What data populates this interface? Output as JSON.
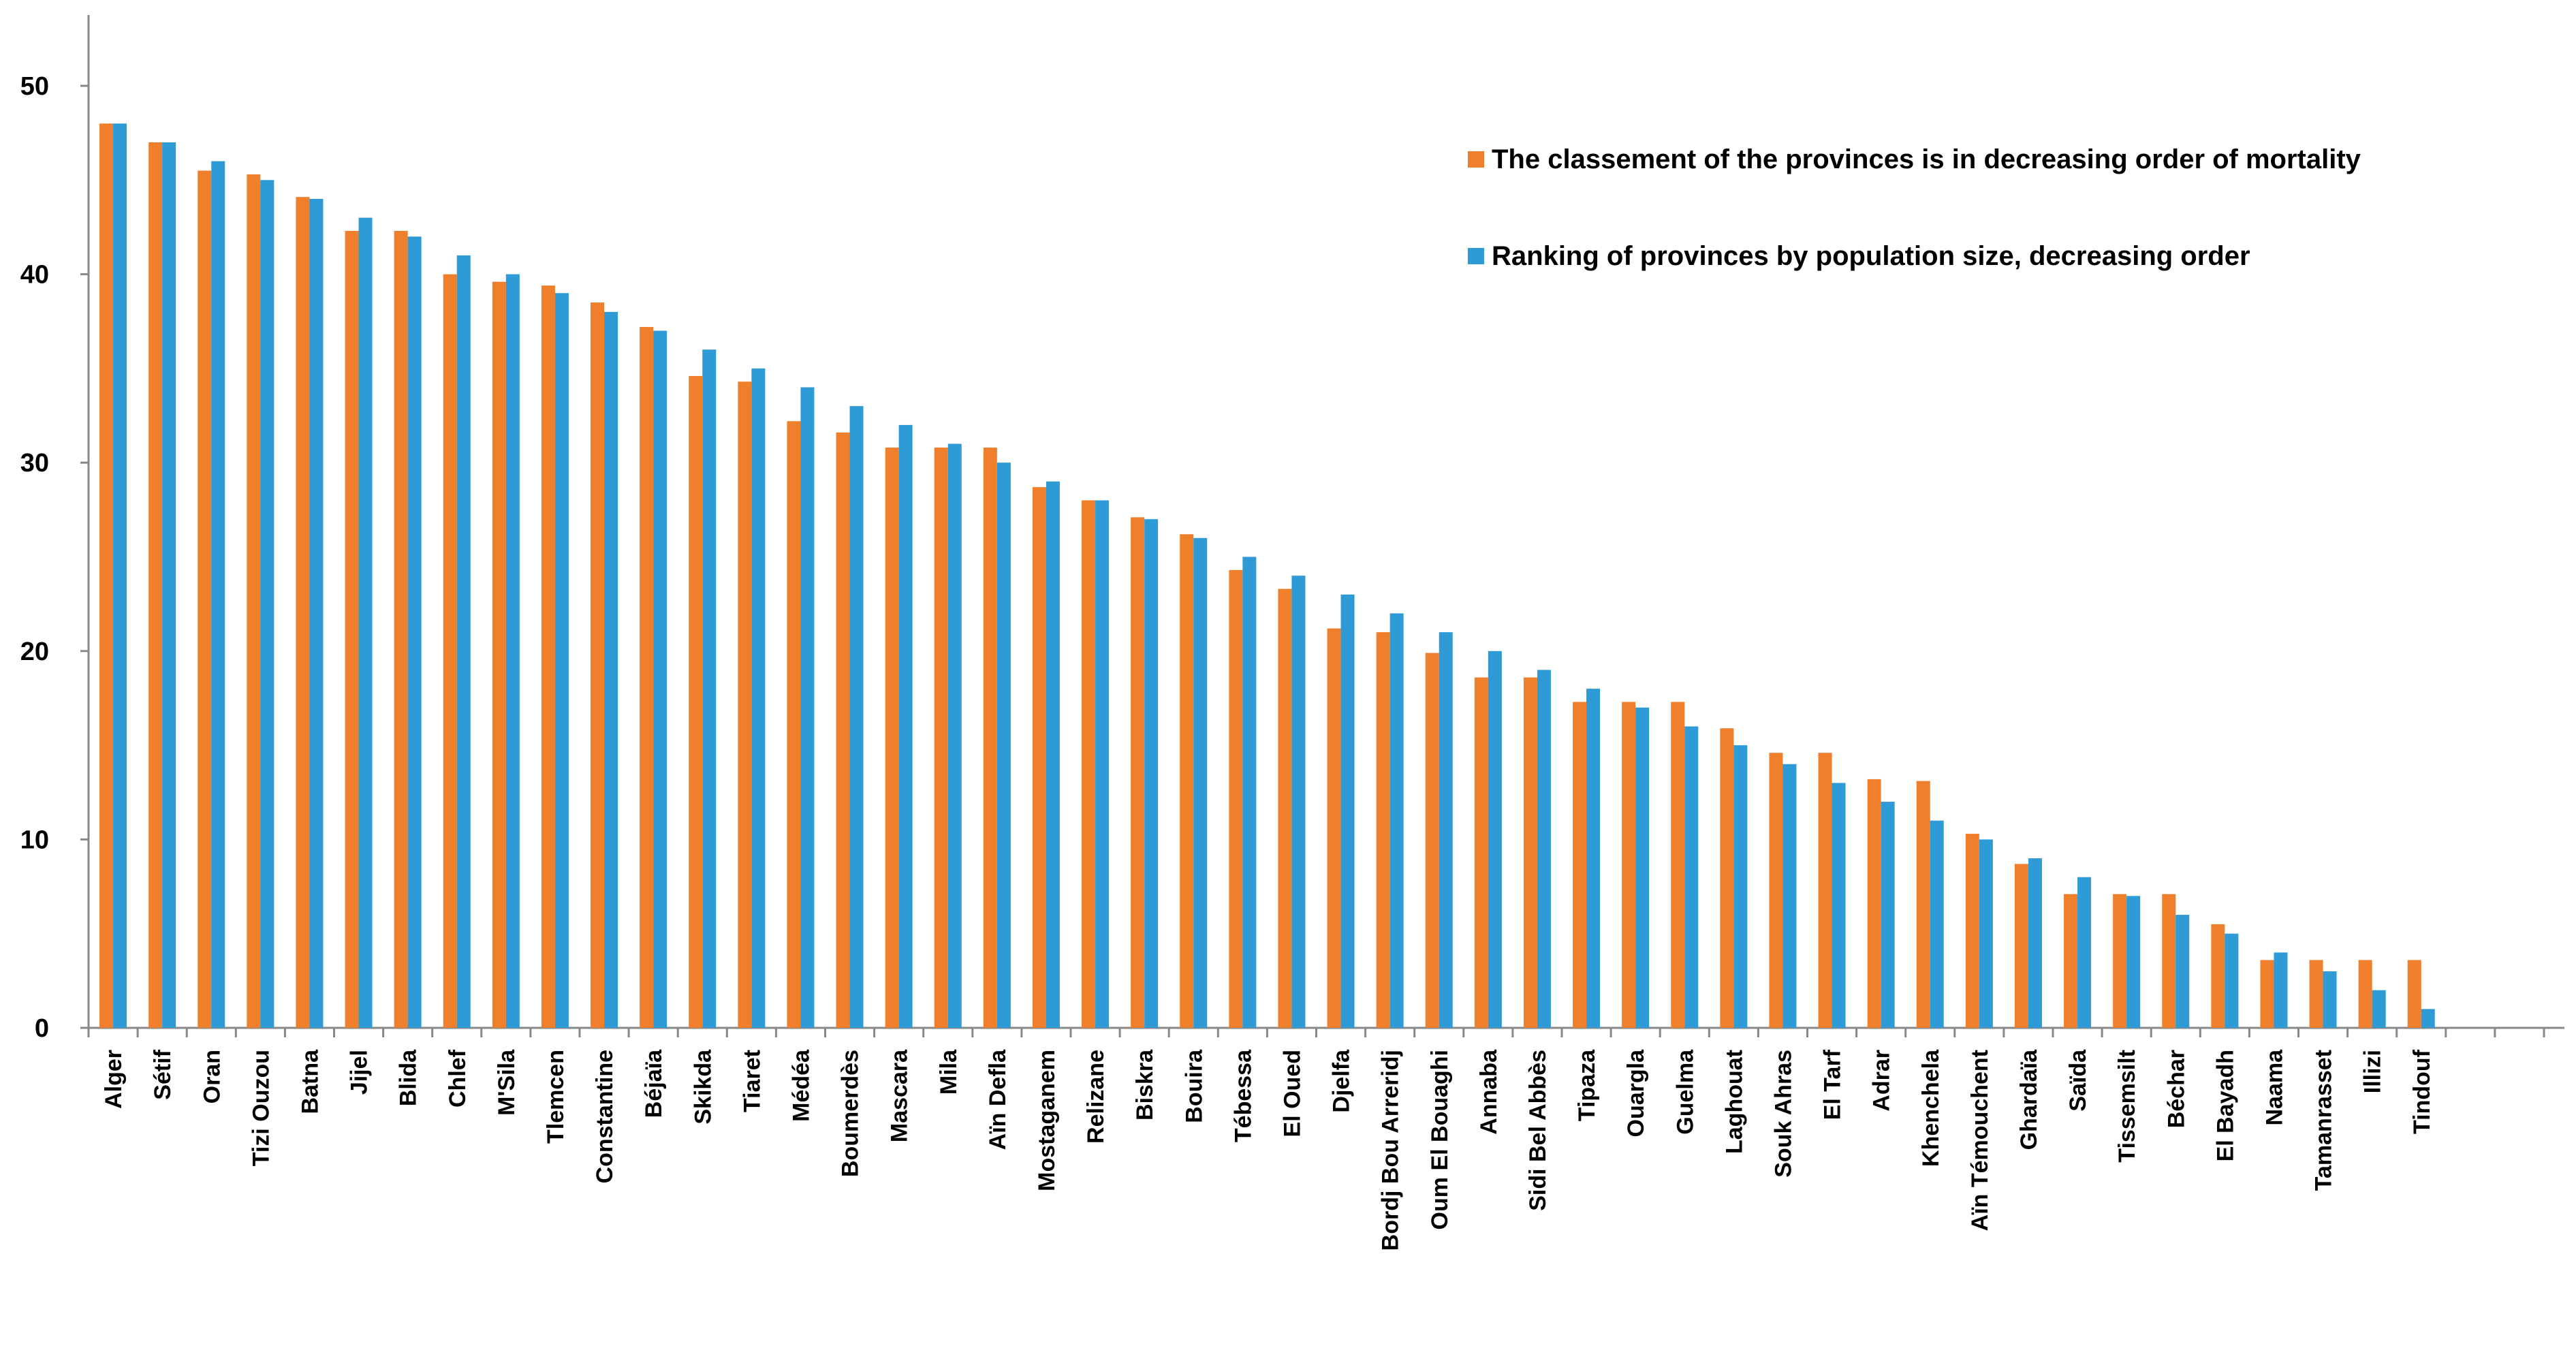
{
  "chart_data": {
    "type": "bar",
    "title": "",
    "xlabel": "",
    "ylabel": "",
    "ylim": [
      0,
      50
    ],
    "yticks": [
      "0",
      "10",
      "20",
      "30",
      "40",
      "50"
    ],
    "grid": false,
    "legend_position": "top-right",
    "categories": [
      "Alger",
      "Sétif",
      "Oran",
      "Tizi Ouzou",
      "Batna",
      "Jijel",
      "Blida",
      "Chlef",
      "M'Sila",
      "Tlemcen",
      "Constantine",
      "Béjaïa",
      "Skikda",
      "Tiaret",
      "Médéa",
      "Boumerdès",
      "Mascara",
      "Mila",
      "Aïn Defla",
      "Mostaganem",
      "Relizane",
      "Biskra",
      "Bouira",
      "Tébessa",
      "El Oued",
      "Djelfa",
      "Bordj Bou Arreridj",
      "Oum El Bouaghi",
      "Annaba",
      "Sidi Bel Abbès",
      "Tipaza",
      "Ouargla",
      "Guelma",
      "Laghouat",
      "Souk Ahras",
      "El Tarf",
      "Adrar",
      "Khenchela",
      "Aïn Témouchent",
      "Ghardaïa",
      "Saïda",
      "Tissemsilt",
      "Béchar",
      "El Bayadh",
      "Naama",
      "Tamanrasset",
      "Illizi",
      "Tindouf"
    ],
    "series": [
      {
        "name": "The classement  of the provinces is in decreasing order of mortality",
        "color": "#F07F2C",
        "values": [
          48,
          47,
          45.5,
          45.3,
          44.1,
          42.3,
          42.3,
          40,
          39.6,
          39.4,
          38.5,
          37.2,
          34.6,
          34.3,
          32.2,
          31.6,
          30.8,
          30.8,
          30.8,
          28.7,
          28,
          27.1,
          26.2,
          24.3,
          23.3,
          21.2,
          21,
          19.9,
          18.6,
          18.6,
          17.3,
          17.3,
          17.3,
          15.9,
          14.6,
          14.6,
          13.2,
          13.1,
          10.3,
          8.7,
          7.1,
          7.1,
          7.1,
          5.5,
          3.6,
          3.6,
          3.6,
          3.6
        ]
      },
      {
        "name": "Ranking of provinces by population size, decreasing order",
        "color": "#2E9BD6",
        "values": [
          48,
          47,
          46,
          45,
          44,
          43,
          42,
          41,
          40,
          39,
          38,
          37,
          36,
          35,
          34,
          33,
          32,
          31,
          30,
          29,
          28,
          27,
          26,
          25,
          24,
          23,
          22,
          21,
          20,
          19,
          18,
          17,
          16,
          15,
          14,
          13,
          12,
          11,
          10,
          9,
          8,
          7,
          6,
          5,
          4,
          3,
          2,
          1
        ]
      }
    ]
  }
}
